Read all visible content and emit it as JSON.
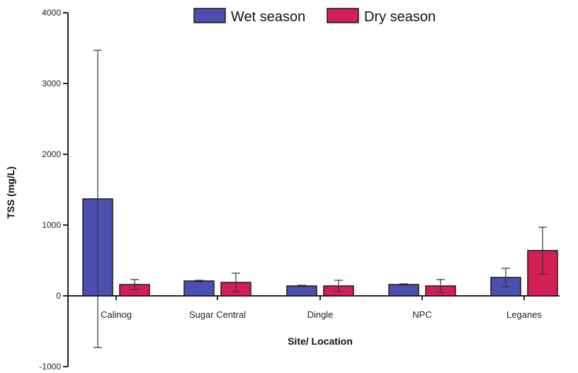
{
  "chart_data": {
    "type": "bar",
    "title": "",
    "xlabel": "Site/ Location",
    "ylabel": "TSS (mg/L)",
    "ylim": [
      -1000,
      4000
    ],
    "yticks": [
      "4000",
      "3000",
      "2000",
      "1000",
      "0",
      "-1000"
    ],
    "ytick_values": [
      4000,
      3000,
      2000,
      1000,
      0,
      -1000
    ],
    "categories": [
      "Calinog",
      "Sugar Central",
      "Dingle",
      "NPC",
      "Leganes"
    ],
    "legend_position": "top-center",
    "grid": false,
    "series": [
      {
        "name": "Wet season",
        "color": "#4b4fad",
        "values": [
          1370,
          210,
          140,
          160,
          260
        ],
        "error": [
          2100,
          10,
          10,
          10,
          130
        ]
      },
      {
        "name": "Dry season",
        "color": "#d21f57",
        "values": [
          160,
          190,
          140,
          140,
          640
        ],
        "error": [
          70,
          130,
          80,
          90,
          330
        ]
      }
    ]
  }
}
